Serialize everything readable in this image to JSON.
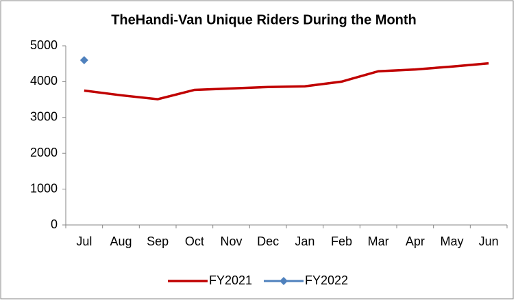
{
  "chart_data": {
    "type": "line",
    "title": "TheHandi-Van Unique Riders During the Month",
    "categories": [
      "Jul",
      "Aug",
      "Sep",
      "Oct",
      "Nov",
      "Dec",
      "Jan",
      "Feb",
      "Mar",
      "Apr",
      "May",
      "Jun"
    ],
    "series": [
      {
        "name": "FY2021",
        "color": "#c00000",
        "values": [
          3750,
          3620,
          3510,
          3770,
          3810,
          3850,
          3870,
          4000,
          4290,
          4340,
          4420,
          4510
        ]
      },
      {
        "name": "FY2022",
        "color": "#4f81bd",
        "values": [
          4600,
          null,
          null,
          null,
          null,
          null,
          null,
          null,
          null,
          null,
          null,
          null
        ]
      }
    ],
    "ylim": [
      0,
      5000
    ],
    "yticks": [
      0,
      1000,
      2000,
      3000,
      4000,
      5000
    ],
    "grid": false,
    "legend": "bottom"
  }
}
